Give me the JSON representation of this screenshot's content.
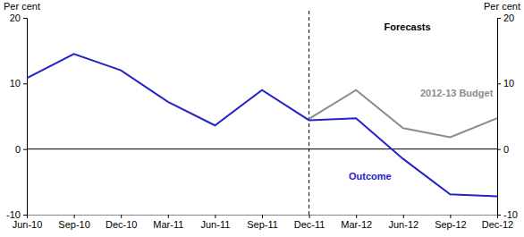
{
  "chart_data": {
    "type": "line",
    "y_label": "Per cent",
    "y2_label": "Per cent",
    "categories": [
      "Jun-10",
      "Sep-10",
      "Dec-10",
      "Mar-11",
      "Jun-11",
      "Sep-11",
      "Dec-11",
      "Mar-12",
      "Jun-12",
      "Sep-12",
      "Dec-12"
    ],
    "series": [
      {
        "name": "Outcome",
        "color": "#2323c8",
        "values": [
          10.8,
          14.5,
          12.0,
          7.2,
          3.6,
          9.0,
          4.4,
          4.7,
          -1.5,
          -6.9,
          -7.2
        ]
      },
      {
        "name": "2012-13 Budget",
        "color": "#8c8c8c",
        "values": [
          null,
          null,
          null,
          null,
          null,
          null,
          4.6,
          9.0,
          3.2,
          1.8,
          4.7
        ]
      }
    ],
    "annotations": [
      {
        "text": "Forecasts",
        "x": "Dec-11"
      }
    ],
    "ylim": [
      -10,
      20
    ],
    "yticks": [
      -10,
      0,
      10,
      20
    ],
    "y2lim": [
      -10,
      20
    ],
    "y2ticks": [
      -10,
      0,
      10,
      20
    ],
    "grid": false
  }
}
